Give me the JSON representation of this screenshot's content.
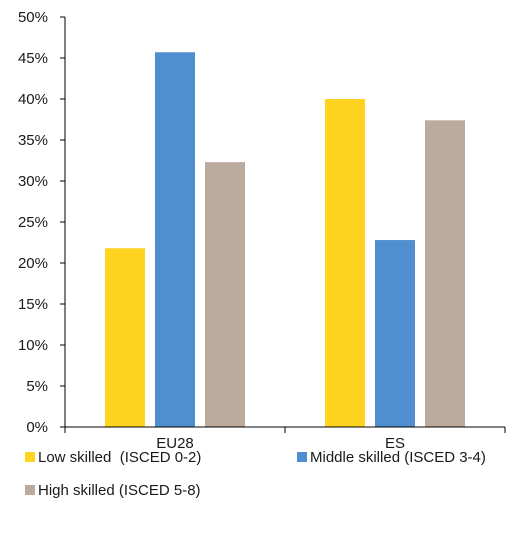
{
  "chart_data": {
    "type": "bar",
    "title": "",
    "xlabel": "",
    "ylabel": "",
    "categories": [
      "EU28",
      "ES"
    ],
    "ylim": [
      0,
      50
    ],
    "yticks": [
      "0%",
      "5%",
      "10%",
      "15%",
      "20%",
      "25%",
      "30%",
      "35%",
      "40%",
      "45%",
      "50%"
    ],
    "series": [
      {
        "name": "Low skilled  (ISCED 0-2)",
        "color": "#FFD420",
        "values": [
          21.8,
          40.0
        ]
      },
      {
        "name": "Middle skilled (ISCED 3-4)",
        "color": "#4F8FD0",
        "values": [
          45.7,
          22.8
        ]
      },
      {
        "name": "High skilled (ISCED 5-8)",
        "color": "#BBAA9E",
        "values": [
          32.3,
          37.4
        ]
      }
    ],
    "grid": false,
    "legend": "bottom"
  }
}
